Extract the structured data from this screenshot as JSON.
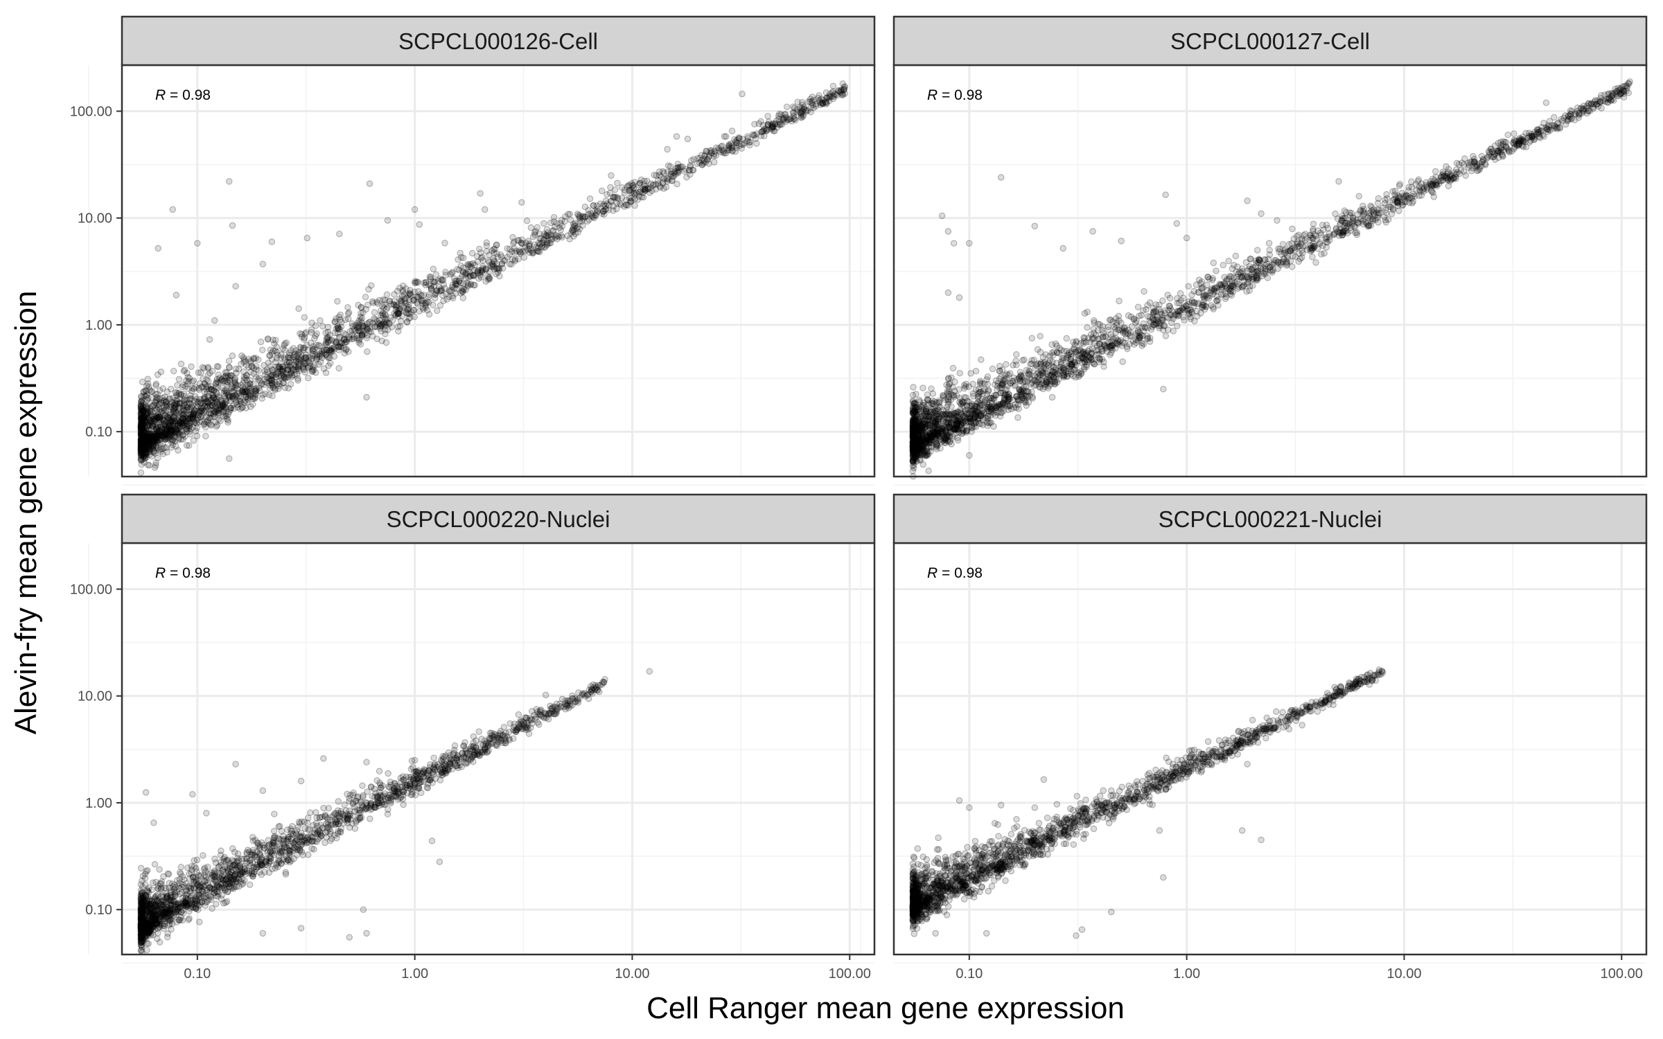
{
  "chart_data": {
    "type": "scatter",
    "xlabel": "Cell Ranger mean gene expression",
    "ylabel": "Alevin-fry mean gene expression",
    "xscale": "log10",
    "yscale": "log10",
    "xlim": [
      0.045,
      130
    ],
    "ylim": [
      0.038,
      270
    ],
    "x_tick_labels": [
      "0.10",
      "1.00",
      "10.00",
      "100.00"
    ],
    "x_ticks": [
      0.1,
      1,
      10,
      100
    ],
    "y_tick_labels": [
      "0.10",
      "1.00",
      "10.00",
      "100.00"
    ],
    "y_ticks": [
      0.1,
      1,
      10,
      100
    ],
    "grid": true,
    "panels": [
      {
        "title": "SCPCL000126-Cell",
        "r_prefix": "R",
        "r_value": " = 0.98",
        "trend": {
          "x": [
            0.055,
            95
          ],
          "y": [
            0.085,
            160
          ]
        },
        "outliers": [
          [
            0.066,
            5.2
          ],
          [
            0.077,
            12
          ],
          [
            0.1,
            5.8
          ],
          [
            0.14,
            22
          ],
          [
            0.145,
            8.5
          ],
          [
            0.2,
            3.7
          ],
          [
            0.22,
            6
          ],
          [
            0.32,
            6.5
          ],
          [
            0.45,
            7.1
          ],
          [
            0.62,
            21
          ],
          [
            0.75,
            9.5
          ],
          [
            1.0,
            12
          ],
          [
            1.05,
            8.7
          ],
          [
            2.0,
            17
          ],
          [
            2.1,
            12
          ],
          [
            3.1,
            14
          ],
          [
            8.0,
            25
          ],
          [
            14.5,
            44
          ],
          [
            16,
            58
          ],
          [
            18,
            55
          ],
          [
            22,
            42
          ],
          [
            27,
            58
          ],
          [
            32,
            145
          ],
          [
            55,
            110
          ],
          [
            66,
            130
          ],
          [
            84,
            172
          ],
          [
            91,
            150
          ],
          [
            95,
            170
          ],
          [
            0.6,
            0.21
          ],
          [
            0.08,
            1.9
          ],
          [
            0.12,
            1.1
          ],
          [
            0.14,
            0.056
          ],
          [
            0.09,
            0.28
          ],
          [
            0.15,
            2.3
          ]
        ],
        "scatter_seed": 1,
        "scatter_density": 1.0,
        "scatter_spread": 0.11,
        "upper_bias": 0.9
      },
      {
        "title": "SCPCL000127-Cell",
        "r_prefix": "R",
        "r_value": " = 0.98",
        "trend": {
          "x": [
            0.055,
            110
          ],
          "y": [
            0.08,
            170
          ]
        },
        "outliers": [
          [
            0.075,
            10.5
          ],
          [
            0.08,
            7.5
          ],
          [
            0.085,
            5.8
          ],
          [
            0.1,
            5.8
          ],
          [
            0.14,
            24
          ],
          [
            0.2,
            8.4
          ],
          [
            0.27,
            5.2
          ],
          [
            0.37,
            7.5
          ],
          [
            0.5,
            6.1
          ],
          [
            0.8,
            16.5
          ],
          [
            0.9,
            8.9
          ],
          [
            1.0,
            6.5
          ],
          [
            1.9,
            14.5
          ],
          [
            2.2,
            11
          ],
          [
            2.6,
            9.5
          ],
          [
            5,
            22
          ],
          [
            6.2,
            16
          ],
          [
            7,
            13
          ],
          [
            9,
            15
          ],
          [
            27,
            42
          ],
          [
            30,
            60
          ],
          [
            34,
            56
          ],
          [
            45,
            120
          ],
          [
            70,
            100
          ],
          [
            72,
            115
          ],
          [
            88,
            130
          ],
          [
            101,
            170
          ],
          [
            105,
            155
          ],
          [
            0.08,
            2
          ],
          [
            0.09,
            1.8
          ],
          [
            0.1,
            0.06
          ],
          [
            0.78,
            0.25
          ]
        ],
        "scatter_seed": 2,
        "scatter_density": 1.0,
        "scatter_spread": 0.1,
        "upper_bias": 0.9
      },
      {
        "title": "SCPCL000220-Nuclei",
        "r_prefix": "R",
        "r_value": " = 0.98",
        "trend": {
          "x": [
            0.055,
            7.5
          ],
          "y": [
            0.075,
            13
          ]
        },
        "outliers": [
          [
            0.058,
            1.25
          ],
          [
            0.063,
            0.65
          ],
          [
            0.095,
            1.2
          ],
          [
            0.11,
            0.8
          ],
          [
            0.15,
            2.3
          ],
          [
            0.2,
            1.3
          ],
          [
            0.3,
            1.6
          ],
          [
            0.38,
            2.6
          ],
          [
            0.5,
            1.1
          ],
          [
            0.6,
            2.4
          ],
          [
            1.0,
            2.5
          ],
          [
            1.2,
            0.44
          ],
          [
            1.3,
            0.28
          ],
          [
            2.1,
            3.1
          ],
          [
            3.0,
            6.7
          ],
          [
            4.0,
            10.2
          ],
          [
            5.6,
            9.3
          ],
          [
            6.5,
            11.5
          ],
          [
            7.4,
            13.5
          ],
          [
            12,
            17
          ],
          [
            0.58,
            0.1
          ],
          [
            0.6,
            0.06
          ],
          [
            0.5,
            0.055
          ],
          [
            0.3,
            0.067
          ],
          [
            0.2,
            0.06
          ]
        ],
        "scatter_seed": 3,
        "scatter_density": 0.75,
        "scatter_spread": 0.1,
        "upper_bias": 0.65
      },
      {
        "title": "SCPCL000221-Nuclei",
        "r_prefix": "R",
        "r_value": " = 0.98",
        "trend": {
          "x": [
            0.055,
            8
          ],
          "y": [
            0.11,
            17
          ]
        },
        "outliers": [
          [
            0.072,
            0.47
          ],
          [
            0.09,
            1.05
          ],
          [
            0.1,
            0.9
          ],
          [
            0.14,
            0.95
          ],
          [
            0.22,
            1.65
          ],
          [
            0.45,
            1.3
          ],
          [
            0.75,
            0.55
          ],
          [
            0.78,
            0.2
          ],
          [
            0.33,
            0.065
          ],
          [
            0.31,
            0.057
          ],
          [
            0.45,
            0.095
          ],
          [
            0.2,
            0.9
          ],
          [
            1.8,
            0.55
          ],
          [
            2.2,
            0.45
          ],
          [
            1.9,
            2.3
          ],
          [
            5.1,
            10
          ],
          [
            6.3,
            13
          ],
          [
            7.9,
            17
          ],
          [
            0.12,
            0.06
          ],
          [
            0.07,
            0.06
          ]
        ],
        "scatter_seed": 4,
        "scatter_density": 0.75,
        "scatter_spread": 0.09,
        "upper_bias": 0.6
      }
    ]
  }
}
